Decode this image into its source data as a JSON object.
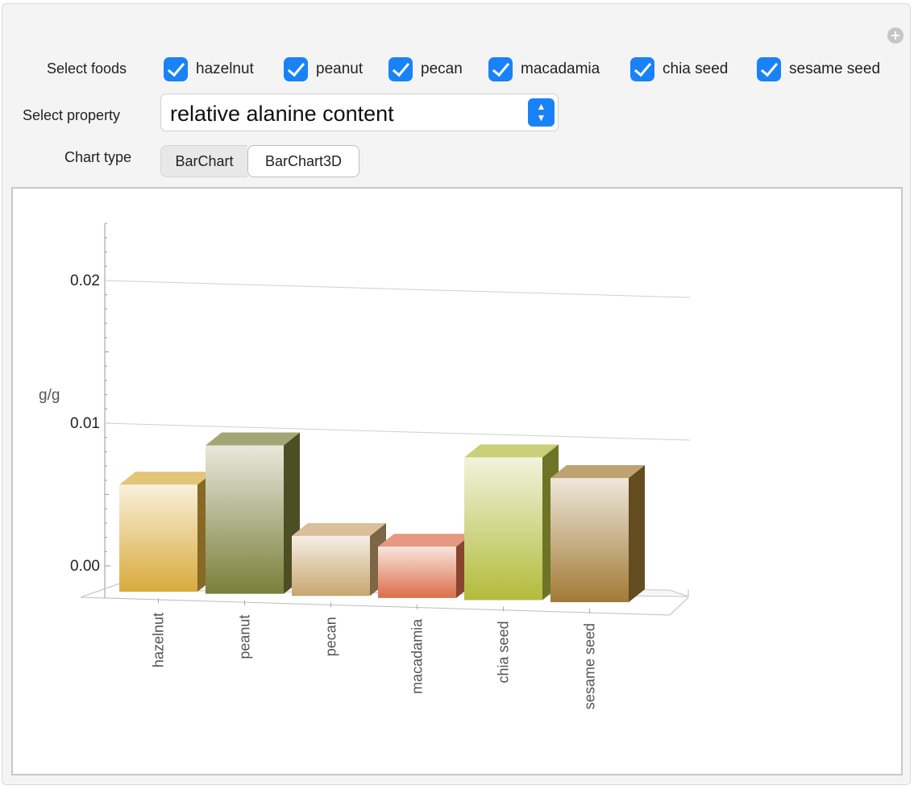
{
  "controls": {
    "select_foods_label": "Select foods",
    "foods": [
      {
        "label": "hazelnut",
        "checked": true
      },
      {
        "label": "peanut",
        "checked": true
      },
      {
        "label": "pecan",
        "checked": true
      },
      {
        "label": "macadamia",
        "checked": true
      },
      {
        "label": "chia seed",
        "checked": true
      },
      {
        "label": "sesame seed",
        "checked": true
      }
    ],
    "select_property_label": "Select property",
    "property_value": "relative alanine content",
    "chart_type_label": "Chart type",
    "chart_types": [
      "BarChart",
      "BarChart3D"
    ],
    "selected_chart_type": "BarChart3D"
  },
  "chart_data": {
    "type": "bar",
    "style": "3d",
    "categories": [
      "hazelnut",
      "peanut",
      "pecan",
      "macadamia",
      "chia seed",
      "sesame seed"
    ],
    "values": [
      0.0075,
      0.0104,
      0.0042,
      0.0036,
      0.01,
      0.0087
    ],
    "ylabel": "g/g",
    "yticks": [
      "0.00",
      "0.01",
      "0.02"
    ],
    "ylim": [
      0,
      0.024
    ],
    "colors": [
      "#d9aa3c",
      "#7a7f3a",
      "#c9a56e",
      "#db6d4a",
      "#b2bb3b",
      "#a27a35"
    ]
  }
}
